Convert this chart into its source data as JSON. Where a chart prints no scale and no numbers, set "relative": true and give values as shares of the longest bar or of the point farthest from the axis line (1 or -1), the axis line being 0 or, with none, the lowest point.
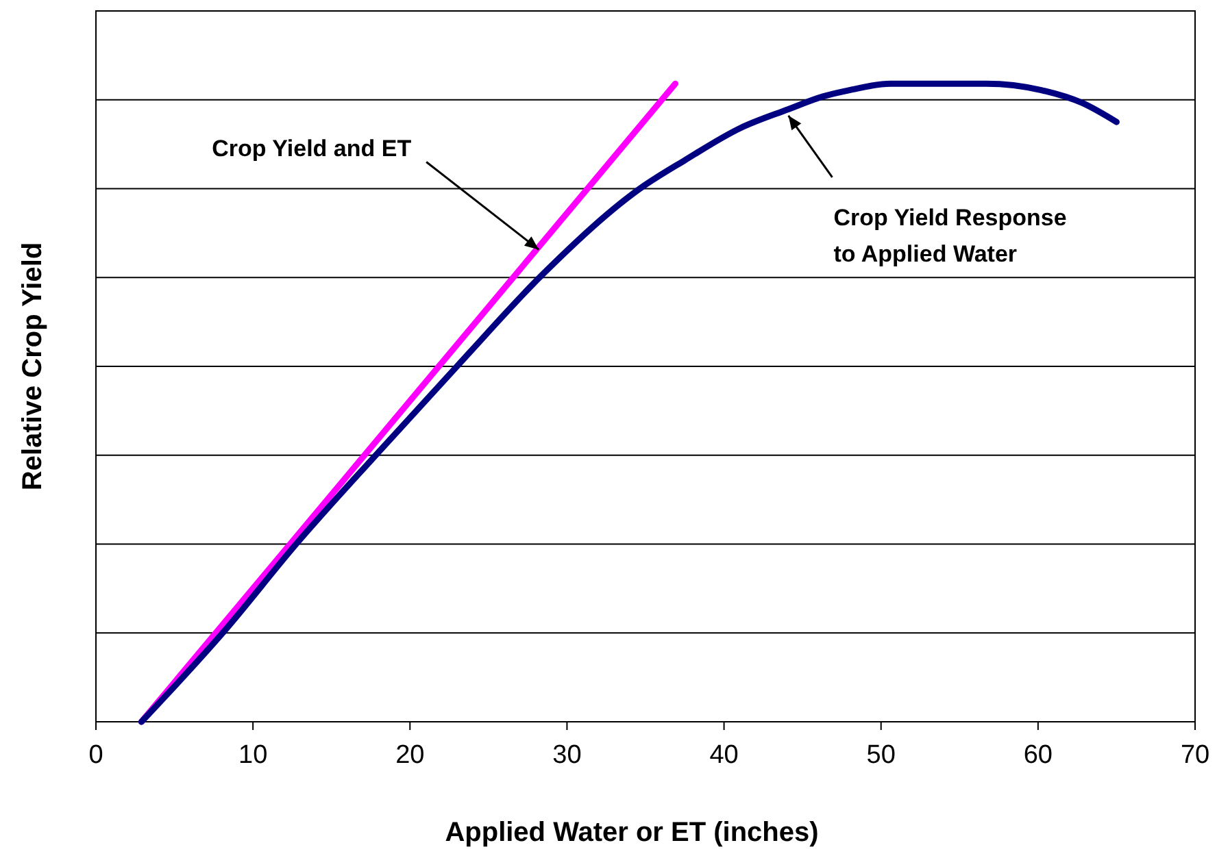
{
  "chart_data": {
    "type": "line",
    "relative": true,
    "xlabel": "Applied Water or ET (inches)",
    "ylabel": "Relative Crop Yield",
    "xlim": [
      0,
      70
    ],
    "xticks": [
      0,
      10,
      20,
      30,
      40,
      50,
      60,
      70
    ],
    "grid": "y",
    "line_style": "solid",
    "marker": "none",
    "series": [
      {
        "color": "#ff00ff",
        "x": [
          2.9,
          36.9
        ],
        "values": [
          0,
          1.0
        ]
      },
      {
        "color": "#000080",
        "x": [
          2.9,
          8.1,
          12.8,
          17.9,
          23.1,
          28.4,
          34.9,
          37.5,
          41.0,
          44.1,
          46.3,
          48.0,
          50.6,
          54.1,
          56.7,
          60.2,
          62.8,
          65.0
        ],
        "values": [
          0,
          0.14,
          0.28,
          0.42,
          0.56,
          0.7,
          0.84,
          0.88,
          0.93,
          0.96,
          0.98,
          0.99,
          1.0,
          1.0,
          1.0,
          0.99,
          0.97,
          0.94
        ]
      }
    ],
    "annotations": [
      {
        "text": "Crop Yield and ET",
        "x": 28.2,
        "y": 0.74
      },
      {
        "text": "Crop Yield Response\nto Applied Water",
        "x": 44.1,
        "y": 0.95
      }
    ]
  }
}
